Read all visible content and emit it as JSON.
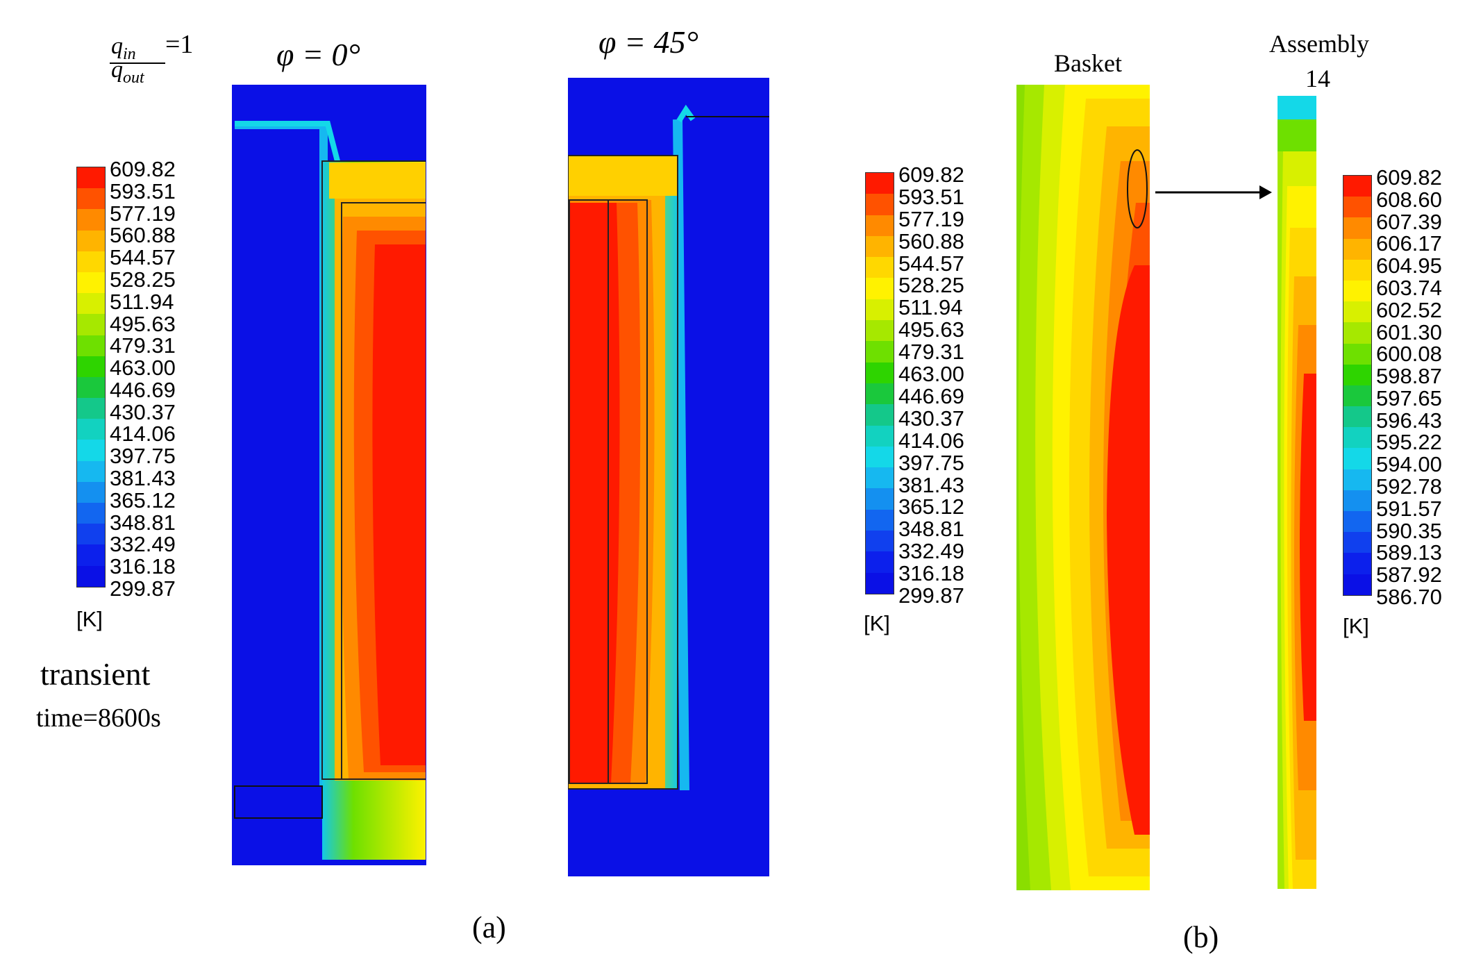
{
  "panel_a": {
    "ratio_numerator": "q",
    "ratio_numerator_sub": "in",
    "ratio_denominator": "q",
    "ratio_denominator_sub": "out",
    "ratio_value": "=1",
    "phi0_label": "φ = 0°",
    "phi45_label": "φ = 45°",
    "mode_label": "transient",
    "time_label": "time=8600s",
    "caption": "(a)",
    "colorbar": {
      "unit": "[K]",
      "values": [
        "609.82",
        "593.51",
        "577.19",
        "560.88",
        "544.57",
        "528.25",
        "511.94",
        "495.63",
        "479.31",
        "463.00",
        "446.69",
        "430.37",
        "414.06",
        "397.75",
        "381.43",
        "365.12",
        "348.81",
        "332.49",
        "316.18",
        "299.87"
      ]
    }
  },
  "panel_b": {
    "basket_label": "Basket",
    "assembly_label_line1": "Assembly",
    "assembly_label_line2": "14",
    "caption": "(b)",
    "colorbar_basket": {
      "unit": "[K]",
      "values": [
        "609.82",
        "593.51",
        "577.19",
        "560.88",
        "544.57",
        "528.25",
        "511.94",
        "495.63",
        "479.31",
        "463.00",
        "446.69",
        "430.37",
        "414.06",
        "397.75",
        "381.43",
        "365.12",
        "348.81",
        "332.49",
        "316.18",
        "299.87"
      ]
    },
    "colorbar_assembly": {
      "unit": "[K]",
      "values": [
        "609.82",
        "608.60",
        "607.39",
        "606.17",
        "604.95",
        "603.74",
        "602.52",
        "601.30",
        "600.08",
        "598.87",
        "597.65",
        "596.43",
        "595.22",
        "594.00",
        "592.78",
        "591.57",
        "590.35",
        "589.13",
        "587.92",
        "586.70"
      ]
    }
  },
  "colormap": [
    "#ff1a00",
    "#ff5200",
    "#ff8a00",
    "#ffb400",
    "#ffd800",
    "#fff200",
    "#d8f000",
    "#a6e800",
    "#6ee000",
    "#2ed400",
    "#1ac83c",
    "#14c88a",
    "#12d2c0",
    "#14d8e8",
    "#16b8f0",
    "#1490f0",
    "#1266f0",
    "#1040ee",
    "#0c20ec",
    "#0a10e6"
  ]
}
